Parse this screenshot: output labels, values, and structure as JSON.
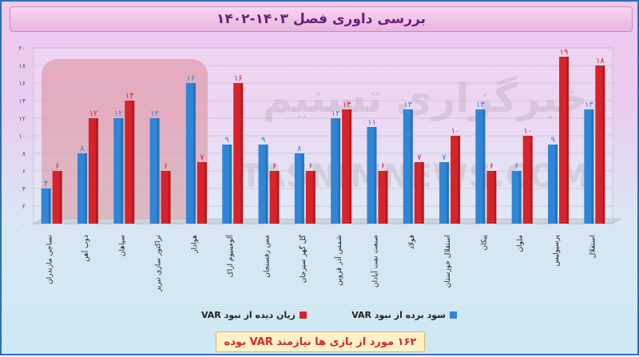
{
  "title": "بررسی داوری فصل ۱۴۰۳-۱۴۰۲",
  "watermark": {
    "brand_fa": "خبرگزاری تسنیم",
    "brand_en": "TASNIMNEWS.COM"
  },
  "legend": {
    "lost": "زیان دیده از نبود VAR",
    "won": "سود برده از نبود VAR"
  },
  "summary": "۱۶۲ مورد از بازی ها نیازمند VAR بوده",
  "colors": {
    "won": "#2f86d6",
    "lost": "#d8232a",
    "accent": "#6a1f7a"
  },
  "chart_data": {
    "type": "bar",
    "categories": [
      "استقلال",
      "پرسپولیس",
      "ملوان",
      "پیکان",
      "استقلال خوزستان",
      "فولاد",
      "صنعت نفت آبادان",
      "شمس آذر قزوین",
      "گل گهر سیرجان",
      "مس رفسنجان",
      "آلومینیوم اراک",
      "هوادار",
      "تراکتور سازی تبریز",
      "سپاهان",
      "ذوب آهن",
      "نساجی مازندران"
    ],
    "series": [
      {
        "name": "سود برده از نبود VAR",
        "values": [
          13,
          9,
          6,
          13,
          7,
          13,
          11,
          12,
          8,
          9,
          9,
          16,
          12,
          12,
          8,
          4
        ]
      },
      {
        "name": "زیان دیده از نبود VAR",
        "values": [
          18,
          19,
          10,
          6,
          10,
          7,
          6,
          13,
          6,
          6,
          16,
          7,
          6,
          14,
          12,
          6
        ]
      }
    ],
    "won_labels": [
      "۱۳",
      "۹",
      "۶",
      "۱۳",
      "۷",
      "۱۳",
      "۱۱",
      "۱۲",
      "۸",
      "۹",
      "۹",
      "۱۶",
      "۱۲",
      "۱۲",
      "۸",
      "۴"
    ],
    "lost_labels": [
      "۱۸",
      "۱۹",
      "۱۰",
      "۶",
      "۱۰",
      "۷",
      "۶",
      "۱۳",
      "۶",
      "۶",
      "۱۶",
      "۷",
      "۶",
      "۱۴",
      "۱۲",
      "۶"
    ],
    "y_tick_labels": [
      "۰",
      "۲",
      "۴",
      "۶",
      "۸",
      "۱۰",
      "۱۲",
      "۱۴",
      "۱۶",
      "۱۸",
      "۲۰"
    ],
    "ylim": [
      0,
      20
    ],
    "grid": true,
    "legend_position": "bottom"
  }
}
